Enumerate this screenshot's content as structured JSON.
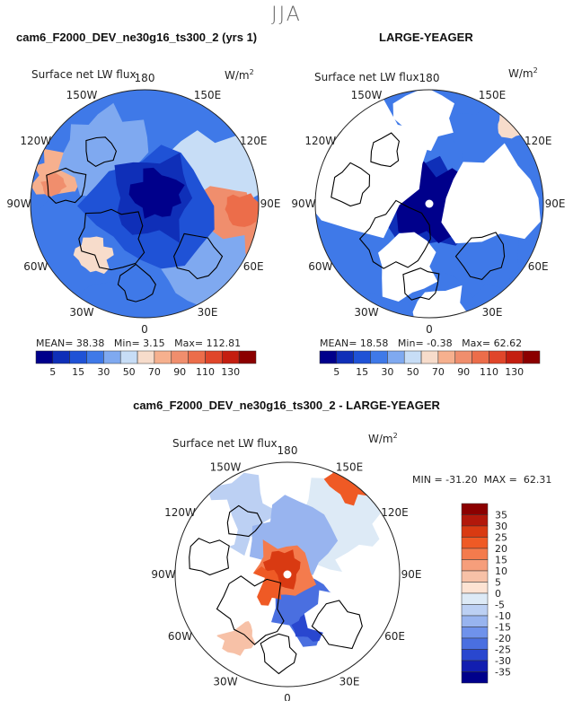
{
  "header": {
    "season": "JJA"
  },
  "panels": {
    "left": {
      "title": "cam6_F2000_DEV_ne30g16_ts300_2 (yrs 1)",
      "label": "Surface net LW flux",
      "units_base": "W/m",
      "units_exp": "2",
      "mean_label": "MEAN=",
      "mean": "38.38",
      "min_label": "Min=",
      "min": "3.15",
      "max_label": "Max=",
      "max": "112.81"
    },
    "right": {
      "title": "LARGE-YEAGER",
      "label": "Surface net LW flux",
      "units_base": "W/m",
      "units_exp": "2",
      "mean_label": "MEAN=",
      "mean": "18.58",
      "min_label": "Min=",
      "min": "-0.38",
      "max_label": "Max=",
      "max": "62.62"
    },
    "diff": {
      "title": "cam6_F2000_DEV_ne30g16_ts300_2 - LARGE-YEAGER",
      "label": "Surface net LW flux",
      "units_base": "W/m",
      "units_exp": "2",
      "stats": "MIN = -31.20  MAX =  62.31"
    }
  },
  "chart_data": [
    {
      "type": "heatmap",
      "title": "cam6_F2000_DEV_ne30g16_ts300_2 (yrs 1)",
      "projection": "north polar stereographic",
      "variable": "Surface net LW flux",
      "units": "W/m2",
      "longitude_labels": [
        "180",
        "150E",
        "120E",
        "90E",
        "60E",
        "30E",
        "0",
        "30W",
        "60W",
        "90W",
        "120W",
        "150W"
      ],
      "colorbar_levels": [
        5,
        15,
        30,
        50,
        70,
        90,
        110,
        130
      ],
      "mean": 38.38,
      "min": 3.15,
      "max": 112.81
    },
    {
      "type": "heatmap",
      "title": "LARGE-YEAGER",
      "projection": "north polar stereographic",
      "variable": "Surface net LW flux",
      "units": "W/m2",
      "longitude_labels": [
        "180",
        "150E",
        "120E",
        "90E",
        "60E",
        "30E",
        "0",
        "30W",
        "60W",
        "90W",
        "120W",
        "150W"
      ],
      "colorbar_levels": [
        5,
        15,
        30,
        50,
        70,
        90,
        110,
        130
      ],
      "mean": 18.58,
      "min": -0.38,
      "max": 62.62
    },
    {
      "type": "heatmap",
      "title": "cam6_F2000_DEV_ne30g16_ts300_2 - LARGE-YEAGER",
      "projection": "north polar stereographic",
      "variable": "Surface net LW flux",
      "units": "W/m2",
      "longitude_labels": [
        "180",
        "150E",
        "120E",
        "90E",
        "60E",
        "30E",
        "0",
        "30W",
        "60W",
        "90W",
        "120W",
        "150W"
      ],
      "colorbar_levels": [
        35,
        30,
        25,
        20,
        15,
        10,
        5,
        0,
        -5,
        -10,
        -15,
        -20,
        -25,
        -30,
        -35
      ],
      "min": -31.2,
      "max": 62.31
    }
  ],
  "colors": {
    "abs_scale": [
      "#00008b",
      "#0f2fb8",
      "#1f52d6",
      "#3f79e8",
      "#7fa9f0",
      "#c7ddf6",
      "#f7dccb",
      "#f6b08e",
      "#f08e6d",
      "#ec6d4a",
      "#e0462a",
      "#c41e10",
      "#8b0000"
    ],
    "diff_scale": [
      "#8b0000",
      "#b2180b",
      "#d93a12",
      "#ef5a25",
      "#f47b4d",
      "#f69e7b",
      "#f7c1a7",
      "#fde3d3",
      "#ddeaf6",
      "#bcd0f3",
      "#98b4ef",
      "#6f92eb",
      "#4a6fe0",
      "#2947cf",
      "#121eb0",
      "#00008b"
    ],
    "land_outline": "#000000",
    "missing": "#ffffff"
  }
}
